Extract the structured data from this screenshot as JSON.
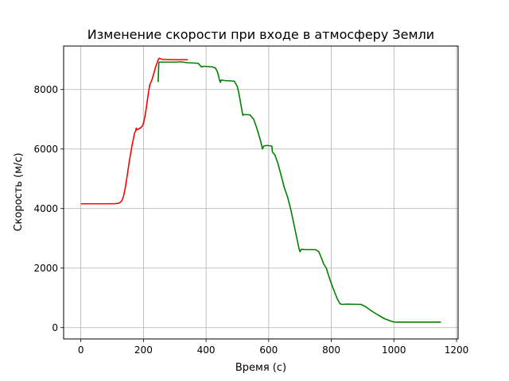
{
  "chart_data": {
    "type": "line",
    "title": "Изменение скорости при входе в атмосферу Земли",
    "xlabel": "Время (с)",
    "ylabel": "Скорость (м/с)",
    "xlim": [
      -55,
      1205
    ],
    "ylim": [
      -380,
      9460
    ],
    "xticks": [
      0,
      200,
      400,
      600,
      800,
      1000,
      1200
    ],
    "yticks": [
      0,
      2000,
      4000,
      6000,
      8000
    ],
    "grid": true,
    "series": [
      {
        "color": "#ff0000",
        "points": [
          [
            0,
            4160
          ],
          [
            40,
            4160
          ],
          [
            80,
            4160
          ],
          [
            110,
            4165
          ],
          [
            122,
            4180
          ],
          [
            130,
            4250
          ],
          [
            136,
            4400
          ],
          [
            142,
            4700
          ],
          [
            148,
            5100
          ],
          [
            155,
            5600
          ],
          [
            160,
            5900
          ],
          [
            163,
            6100
          ],
          [
            167,
            6300
          ],
          [
            170,
            6450
          ],
          [
            172,
            6550
          ],
          [
            175,
            6600
          ],
          [
            177,
            6700
          ],
          [
            180,
            6650
          ],
          [
            185,
            6680
          ],
          [
            192,
            6720
          ],
          [
            198,
            6800
          ],
          [
            203,
            7000
          ],
          [
            208,
            7300
          ],
          [
            212,
            7600
          ],
          [
            216,
            7900
          ],
          [
            220,
            8150
          ],
          [
            224,
            8250
          ],
          [
            228,
            8350
          ],
          [
            232,
            8500
          ],
          [
            236,
            8650
          ],
          [
            240,
            8800
          ],
          [
            244,
            8900
          ],
          [
            247,
            9000
          ],
          [
            250,
            9050
          ],
          [
            260,
            9010
          ],
          [
            300,
            9000
          ],
          [
            342,
            9000
          ]
        ]
      },
      {
        "color": "#008000",
        "points": [
          [
            247,
            8250
          ],
          [
            249,
            8900
          ],
          [
            252,
            8920
          ],
          [
            260,
            8920
          ],
          [
            300,
            8920
          ],
          [
            320,
            8930
          ],
          [
            340,
            8900
          ],
          [
            360,
            8890
          ],
          [
            375,
            8880
          ],
          [
            380,
            8820
          ],
          [
            385,
            8760
          ],
          [
            392,
            8780
          ],
          [
            420,
            8760
          ],
          [
            430,
            8720
          ],
          [
            436,
            8600
          ],
          [
            440,
            8450
          ],
          [
            443,
            8300
          ],
          [
            446,
            8240
          ],
          [
            448,
            8320
          ],
          [
            460,
            8300
          ],
          [
            490,
            8280
          ],
          [
            500,
            8100
          ],
          [
            506,
            7800
          ],
          [
            512,
            7450
          ],
          [
            516,
            7200
          ],
          [
            518,
            7130
          ],
          [
            520,
            7160
          ],
          [
            540,
            7150
          ],
          [
            552,
            7000
          ],
          [
            562,
            6700
          ],
          [
            572,
            6350
          ],
          [
            577,
            6150
          ],
          [
            580,
            6000
          ],
          [
            584,
            6100
          ],
          [
            595,
            6120
          ],
          [
            610,
            6100
          ],
          [
            612,
            5900
          ],
          [
            620,
            5800
          ],
          [
            630,
            5500
          ],
          [
            640,
            5100
          ],
          [
            650,
            4700
          ],
          [
            660,
            4400
          ],
          [
            665,
            4200
          ],
          [
            672,
            3900
          ],
          [
            680,
            3500
          ],
          [
            686,
            3200
          ],
          [
            692,
            2900
          ],
          [
            697,
            2650
          ],
          [
            700,
            2550
          ],
          [
            704,
            2630
          ],
          [
            720,
            2620
          ],
          [
            750,
            2620
          ],
          [
            760,
            2550
          ],
          [
            770,
            2300
          ],
          [
            775,
            2150
          ],
          [
            784,
            2000
          ],
          [
            790,
            1800
          ],
          [
            796,
            1600
          ],
          [
            803,
            1400
          ],
          [
            812,
            1150
          ],
          [
            820,
            950
          ],
          [
            828,
            800
          ],
          [
            835,
            780
          ],
          [
            850,
            790
          ],
          [
            895,
            780
          ],
          [
            910,
            700
          ],
          [
            930,
            550
          ],
          [
            950,
            420
          ],
          [
            970,
            300
          ],
          [
            990,
            220
          ],
          [
            1000,
            190
          ],
          [
            1010,
            185
          ],
          [
            1050,
            185
          ],
          [
            1100,
            185
          ],
          [
            1150,
            185
          ]
        ]
      }
    ]
  }
}
